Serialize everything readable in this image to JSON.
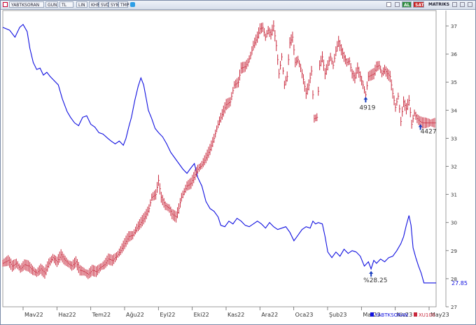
{
  "toolbar": {
    "symbol": "YABTKSORAN",
    "period": "GUN",
    "currency": "TL",
    "scale": "LIN",
    "tools": [
      "KHN",
      "SVD",
      "SYM",
      "TMP"
    ],
    "buttons": [
      "AL",
      "SAT"
    ],
    "menu": "MATRIKS"
  },
  "colors": {
    "blue_series": "#1010e0",
    "red_series": "#c8283c",
    "al_button": "#2e8b3e",
    "sat_button": "#c62020",
    "frame": "#7a8aa8"
  },
  "chart_data": {
    "type": "line",
    "x_axis": {
      "labels": [
        "Mav22",
        "Haz22",
        "Tem22",
        "Ağu22",
        "Eyl22",
        "Eki22",
        "Kas22",
        "Ara22",
        "Oca23",
        "Şub23",
        "Mar23",
        "Nis23",
        "May23"
      ],
      "range": [
        "Nis22",
        "May23"
      ]
    },
    "right_axis": {
      "ticks": [
        27,
        28,
        29,
        30,
        31,
        32,
        33,
        34,
        35,
        36,
        37
      ],
      "range": [
        27,
        37.4
      ],
      "unit": "%",
      "applies_to": "YABTKSORAN"
    },
    "grid": false,
    "legend_position": "bottom-right",
    "series": [
      {
        "name": "YABTKSORAN",
        "color": "#1010e0",
        "style": "line",
        "points": [
          [
            0,
            36.95
          ],
          [
            10,
            36.85
          ],
          [
            18,
            36.6
          ],
          [
            25,
            36.95
          ],
          [
            30,
            37.05
          ],
          [
            36,
            36.8
          ],
          [
            40,
            36.2
          ],
          [
            45,
            35.7
          ],
          [
            50,
            35.45
          ],
          [
            55,
            35.5
          ],
          [
            60,
            35.25
          ],
          [
            65,
            35.35
          ],
          [
            70,
            35.2
          ],
          [
            76,
            35.05
          ],
          [
            82,
            34.9
          ],
          [
            88,
            34.4
          ],
          [
            95,
            33.95
          ],
          [
            100,
            33.75
          ],
          [
            106,
            33.55
          ],
          [
            112,
            33.45
          ],
          [
            118,
            33.75
          ],
          [
            124,
            33.8
          ],
          [
            130,
            33.5
          ],
          [
            136,
            33.4
          ],
          [
            142,
            33.2
          ],
          [
            148,
            33.15
          ],
          [
            155,
            33.0
          ],
          [
            160,
            32.9
          ],
          [
            166,
            32.8
          ],
          [
            172,
            32.9
          ],
          [
            178,
            32.75
          ],
          [
            182,
            33.0
          ],
          [
            186,
            33.4
          ],
          [
            190,
            33.75
          ],
          [
            195,
            34.35
          ],
          [
            200,
            34.85
          ],
          [
            204,
            35.15
          ],
          [
            208,
            34.9
          ],
          [
            212,
            34.4
          ],
          [
            215,
            34.0
          ],
          [
            220,
            33.7
          ],
          [
            225,
            33.35
          ],
          [
            230,
            33.2
          ],
          [
            236,
            33.05
          ],
          [
            242,
            32.8
          ],
          [
            248,
            32.5
          ],
          [
            254,
            32.3
          ],
          [
            260,
            32.1
          ],
          [
            266,
            31.9
          ],
          [
            272,
            31.75
          ],
          [
            278,
            31.95
          ],
          [
            283,
            32.1
          ],
          [
            288,
            31.6
          ],
          [
            294,
            31.3
          ],
          [
            300,
            30.75
          ],
          [
            306,
            30.5
          ],
          [
            312,
            30.4
          ],
          [
            318,
            30.2
          ],
          [
            322,
            29.9
          ],
          [
            328,
            29.85
          ],
          [
            334,
            30.05
          ],
          [
            340,
            29.95
          ],
          [
            346,
            30.15
          ],
          [
            352,
            30.05
          ],
          [
            358,
            29.9
          ],
          [
            364,
            29.85
          ],
          [
            370,
            29.95
          ],
          [
            376,
            30.05
          ],
          [
            382,
            29.95
          ],
          [
            388,
            29.8
          ],
          [
            394,
            30.0
          ],
          [
            400,
            29.85
          ],
          [
            406,
            29.75
          ],
          [
            412,
            29.8
          ],
          [
            418,
            29.85
          ],
          [
            424,
            29.65
          ],
          [
            430,
            29.35
          ],
          [
            436,
            29.55
          ],
          [
            442,
            29.75
          ],
          [
            448,
            29.85
          ],
          [
            454,
            29.8
          ],
          [
            458,
            30.05
          ],
          [
            462,
            29.95
          ],
          [
            466,
            30.0
          ],
          [
            472,
            29.95
          ],
          [
            476,
            29.5
          ],
          [
            480,
            28.95
          ],
          [
            486,
            28.75
          ],
          [
            492,
            28.95
          ],
          [
            498,
            28.8
          ],
          [
            504,
            29.05
          ],
          [
            510,
            28.9
          ],
          [
            516,
            29.0
          ],
          [
            522,
            28.95
          ],
          [
            528,
            28.8
          ],
          [
            534,
            28.45
          ],
          [
            540,
            28.6
          ],
          [
            544,
            28.35
          ],
          [
            548,
            28.65
          ],
          [
            552,
            28.55
          ],
          [
            558,
            28.7
          ],
          [
            564,
            28.6
          ],
          [
            570,
            28.75
          ],
          [
            576,
            28.8
          ],
          [
            582,
            29.0
          ],
          [
            588,
            29.25
          ],
          [
            592,
            29.5
          ],
          [
            596,
            29.9
          ],
          [
            600,
            30.25
          ],
          [
            603,
            29.9
          ],
          [
            606,
            29.1
          ],
          [
            610,
            28.75
          ],
          [
            614,
            28.45
          ],
          [
            618,
            28.2
          ],
          [
            622,
            27.85
          ],
          [
            640,
            27.85
          ]
        ]
      },
      {
        "name": "XU100",
        "color": "#c8283c",
        "style": "ohlc",
        "points": [
          [
            0,
            28.55
          ],
          [
            8,
            28.65
          ],
          [
            14,
            28.45
          ],
          [
            20,
            28.55
          ],
          [
            26,
            28.35
          ],
          [
            32,
            28.5
          ],
          [
            38,
            28.45
          ],
          [
            44,
            28.3
          ],
          [
            50,
            28.2
          ],
          [
            56,
            28.35
          ],
          [
            62,
            28.2
          ],
          [
            68,
            28.55
          ],
          [
            74,
            28.75
          ],
          [
            80,
            28.6
          ],
          [
            86,
            28.85
          ],
          [
            90,
            28.7
          ],
          [
            96,
            28.55
          ],
          [
            102,
            28.45
          ],
          [
            108,
            28.6
          ],
          [
            114,
            28.3
          ],
          [
            120,
            28.25
          ],
          [
            126,
            28.15
          ],
          [
            132,
            28.3
          ],
          [
            138,
            28.25
          ],
          [
            144,
            28.4
          ],
          [
            150,
            28.5
          ],
          [
            156,
            28.7
          ],
          [
            162,
            28.65
          ],
          [
            168,
            28.8
          ],
          [
            174,
            29.0
          ],
          [
            180,
            29.25
          ],
          [
            186,
            29.5
          ],
          [
            192,
            29.55
          ],
          [
            198,
            29.8
          ],
          [
            204,
            30.0
          ],
          [
            210,
            30.2
          ],
          [
            216,
            30.5
          ],
          [
            220,
            30.9
          ],
          [
            226,
            31.0
          ],
          [
            230,
            31.5
          ],
          [
            234,
            30.9
          ],
          [
            240,
            30.6
          ],
          [
            246,
            30.5
          ],
          [
            250,
            30.3
          ],
          [
            256,
            30.2
          ],
          [
            260,
            30.5
          ],
          [
            264,
            30.9
          ],
          [
            268,
            31.1
          ],
          [
            272,
            31.3
          ],
          [
            278,
            31.4
          ],
          [
            284,
            31.7
          ],
          [
            288,
            31.9
          ],
          [
            294,
            32.05
          ],
          [
            300,
            32.3
          ],
          [
            306,
            32.6
          ],
          [
            312,
            33.0
          ],
          [
            318,
            33.5
          ],
          [
            324,
            33.85
          ],
          [
            330,
            34.2
          ],
          [
            336,
            34.3
          ],
          [
            342,
            34.9
          ],
          [
            348,
            35.0
          ],
          [
            352,
            35.5
          ],
          [
            358,
            35.55
          ],
          [
            362,
            35.7
          ],
          [
            366,
            35.95
          ],
          [
            370,
            36.3
          ],
          [
            376,
            36.6
          ],
          [
            380,
            36.9
          ],
          [
            384,
            36.95
          ],
          [
            388,
            36.6
          ],
          [
            392,
            36.85
          ],
          [
            396,
            36.7
          ],
          [
            400,
            37.0
          ],
          [
            404,
            36.3
          ],
          [
            408,
            35.3
          ],
          [
            412,
            35.9
          ],
          [
            416,
            34.9
          ],
          [
            420,
            35.2
          ],
          [
            424,
            36.4
          ],
          [
            428,
            36.6
          ],
          [
            432,
            35.7
          ],
          [
            436,
            35.8
          ],
          [
            440,
            35.5
          ],
          [
            444,
            35.1
          ],
          [
            448,
            34.6
          ],
          [
            452,
            34.9
          ],
          [
            456,
            35.4
          ],
          [
            460,
            33.7
          ],
          [
            464,
            33.75
          ],
          [
            468,
            35.6
          ],
          [
            472,
            35.9
          ],
          [
            476,
            35.3
          ],
          [
            480,
            35.6
          ],
          [
            484,
            35.9
          ],
          [
            488,
            35.6
          ],
          [
            492,
            36.1
          ],
          [
            496,
            36.45
          ],
          [
            500,
            36.15
          ],
          [
            504,
            35.9
          ],
          [
            508,
            35.7
          ],
          [
            512,
            35.75
          ],
          [
            516,
            35.3
          ],
          [
            520,
            35.15
          ],
          [
            524,
            35.5
          ],
          [
            528,
            35.2
          ],
          [
            532,
            34.9
          ],
          [
            536,
            34.55
          ],
          [
            540,
            35.2
          ],
          [
            544,
            35.25
          ],
          [
            548,
            35.3
          ],
          [
            552,
            35.55
          ],
          [
            556,
            35.6
          ],
          [
            560,
            35.3
          ],
          [
            564,
            35.45
          ],
          [
            568,
            35.3
          ],
          [
            572,
            35.2
          ],
          [
            576,
            34.6
          ],
          [
            580,
            34.1
          ],
          [
            584,
            34.5
          ],
          [
            588,
            33.6
          ],
          [
            592,
            34.3
          ],
          [
            596,
            34.05
          ],
          [
            600,
            34.35
          ],
          [
            604,
            33.5
          ],
          [
            608,
            33.9
          ],
          [
            612,
            33.7
          ],
          [
            616,
            33.6
          ],
          [
            620,
            33.55
          ],
          [
            640,
            33.55
          ]
        ]
      }
    ],
    "annotations": [
      {
        "text": "4919",
        "series": "XU100",
        "marker": "arrow-up"
      },
      {
        "text": "4427",
        "series": "XU100",
        "marker": "arrow-up"
      },
      {
        "text": "%28.25",
        "series": "YABTKSORAN",
        "marker": "arrow-up"
      },
      {
        "text": "27.85",
        "series": "YABTKSORAN",
        "marker": "last-value"
      }
    ]
  }
}
